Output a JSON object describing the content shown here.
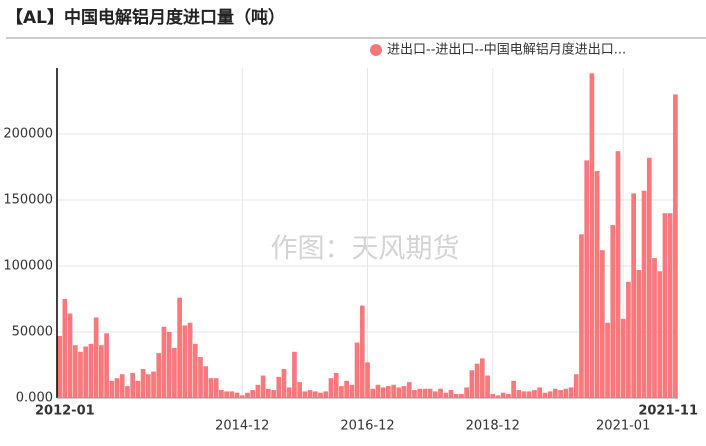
{
  "chart_data": {
    "type": "bar",
    "title": "【AL】中国电解铝月度进口量（吨）",
    "annotation": "作图：天风期货",
    "categories": [
      "2012-01",
      null,
      null,
      null,
      null,
      null,
      null,
      null,
      null,
      null,
      null,
      null,
      null,
      null,
      null,
      null,
      null,
      null,
      null,
      null,
      null,
      null,
      null,
      null,
      null,
      null,
      null,
      null,
      null,
      null,
      null,
      null,
      null,
      null,
      null,
      "2014-12",
      null,
      null,
      null,
      null,
      null,
      null,
      null,
      null,
      null,
      null,
      null,
      null,
      null,
      null,
      null,
      null,
      null,
      null,
      null,
      null,
      null,
      null,
      null,
      "2016-12",
      null,
      null,
      null,
      null,
      null,
      null,
      null,
      null,
      null,
      null,
      null,
      null,
      null,
      null,
      null,
      null,
      null,
      null,
      null,
      null,
      null,
      null,
      null,
      "2018-12",
      null,
      null,
      null,
      null,
      null,
      null,
      null,
      null,
      null,
      null,
      null,
      null,
      null,
      null,
      null,
      null,
      null,
      null,
      null,
      null,
      null,
      null,
      null,
      null,
      "2021-01",
      null,
      null,
      null,
      null,
      null,
      null,
      null,
      null,
      null,
      "2021-11"
    ],
    "series": [
      {
        "name": "进出口--进出口--中国电解铝月度进出口...",
        "color": "#f9787c",
        "values": [
          47000,
          75000,
          64000,
          40000,
          35000,
          39000,
          41000,
          61000,
          40000,
          49000,
          13000,
          15000,
          18000,
          9000,
          19000,
          13000,
          22000,
          18000,
          20000,
          34000,
          54000,
          50000,
          38000,
          76000,
          55000,
          57000,
          41000,
          31000,
          24000,
          15000,
          15000,
          6000,
          5000,
          5000,
          4000,
          2000,
          4000,
          6000,
          10000,
          17000,
          7000,
          6000,
          16000,
          22000,
          8000,
          35000,
          12000,
          5000,
          6000,
          5000,
          4000,
          5000,
          15000,
          19000,
          9000,
          13000,
          10000,
          42000,
          70000,
          27000,
          7000,
          10000,
          8000,
          9000,
          10000,
          8000,
          9000,
          12000,
          6000,
          7000,
          7000,
          7000,
          5000,
          7000,
          4000,
          6000,
          3000,
          3000,
          8000,
          21000,
          26000,
          30000,
          17000,
          3000,
          2000,
          4000,
          3000,
          13000,
          6000,
          5000,
          5000,
          6000,
          8000,
          4000,
          5000,
          7000,
          6000,
          7000,
          8000,
          18000,
          124000,
          180000,
          246000,
          172000,
          112000,
          57000,
          131000,
          187000,
          60000,
          88000,
          155000,
          97000,
          157000,
          182000,
          106000,
          96000,
          140000,
          140000,
          230000
        ]
      }
    ],
    "ylim": [
      0,
      250000
    ],
    "yticks": [
      {
        "value": 0,
        "label": "0.000"
      },
      50000,
      100000,
      150000,
      200000
    ],
    "grid": true
  }
}
